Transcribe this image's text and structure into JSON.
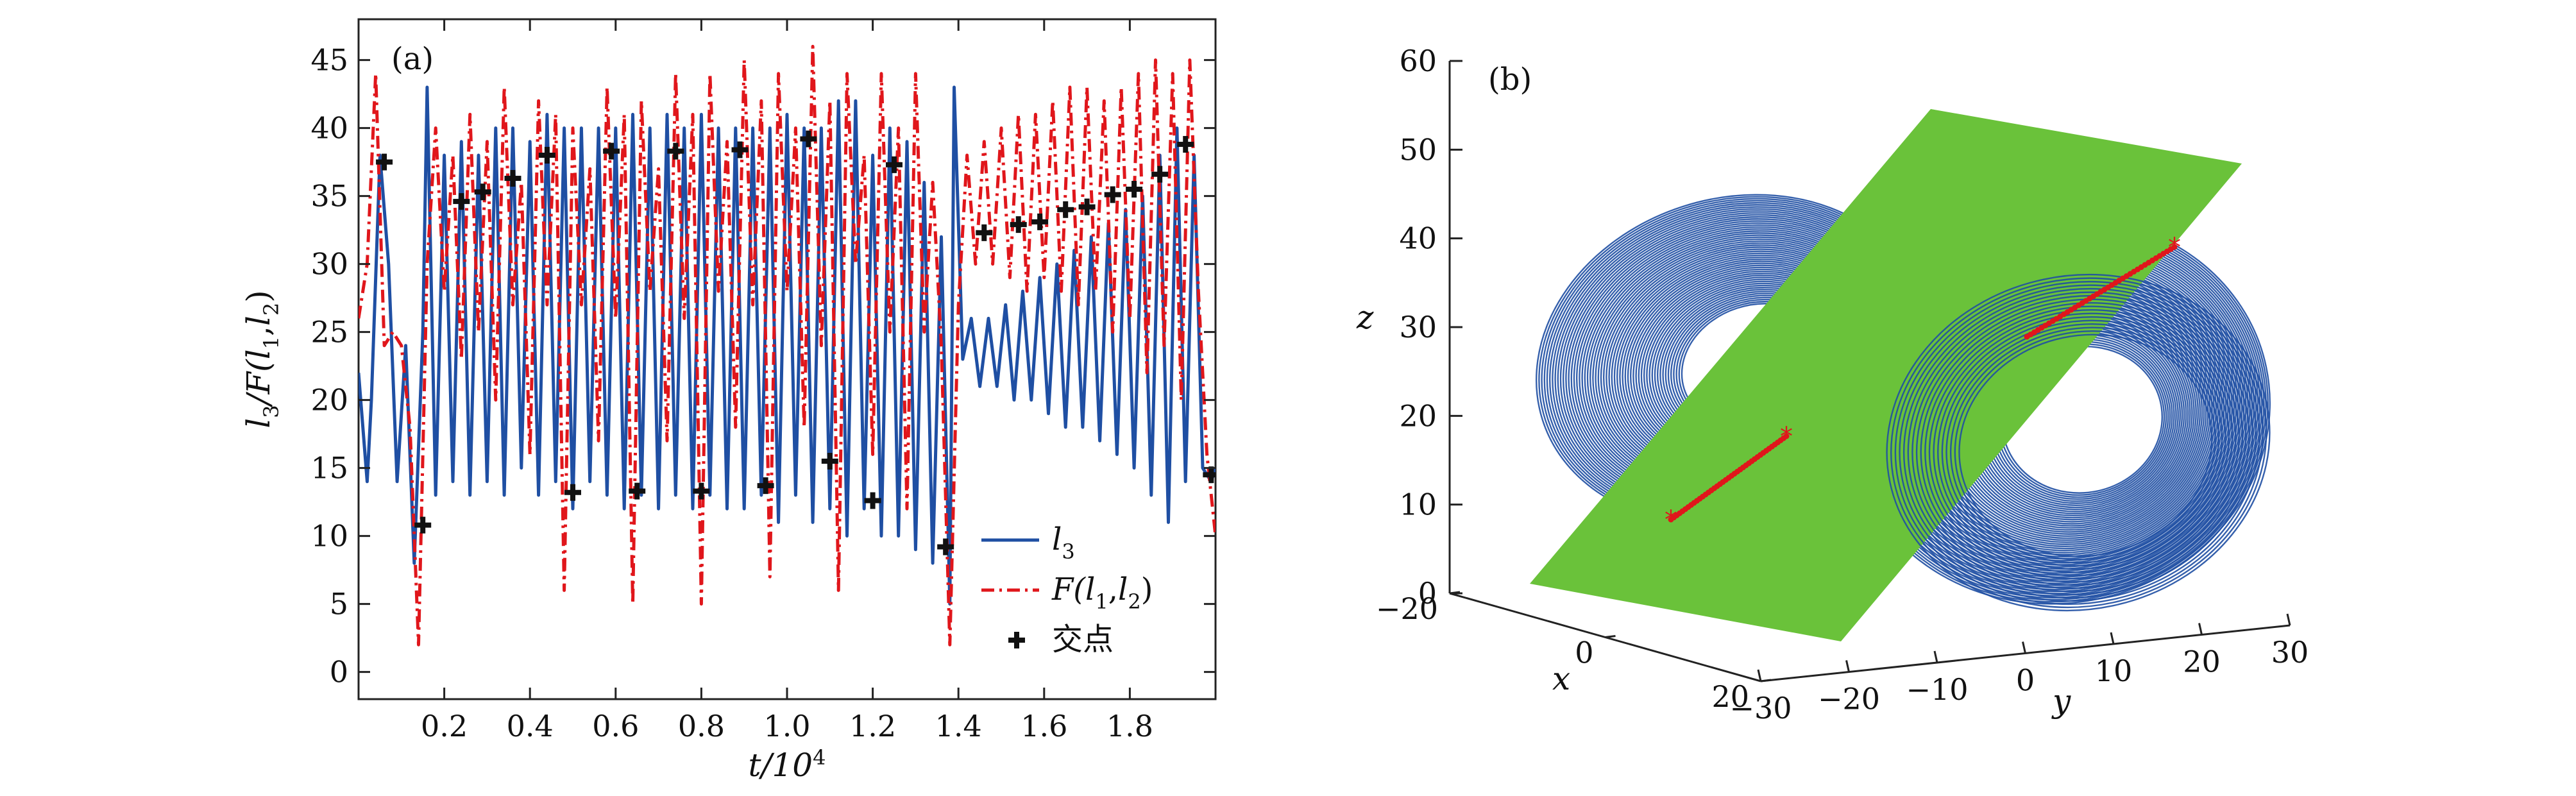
{
  "chart_data": [
    {
      "panel": "(a)",
      "type": "line",
      "xlabel": "t/10^4",
      "ylabel": "l_3/F(l_1,l_2)",
      "xlim": [
        0,
        2.0
      ],
      "ylim": [
        -2,
        48
      ],
      "x_ticks": [
        "0.2",
        "0.4",
        "0.6",
        "0.8",
        "1.0",
        "1.2",
        "1.4",
        "1.6",
        "1.8"
      ],
      "y_ticks": [
        "0",
        "5",
        "10",
        "15",
        "20",
        "25",
        "30",
        "35",
        "40",
        "45"
      ],
      "legend_position": "bottom-right",
      "series": [
        {
          "name": "l_3",
          "color": "#1f4fa3",
          "style": "solid",
          "x": [
            0.0,
            0.02,
            0.03,
            0.05,
            0.07,
            0.09,
            0.11,
            0.13,
            0.15,
            0.16,
            0.18,
            0.2,
            0.22,
            0.24,
            0.26,
            0.28,
            0.3,
            0.32,
            0.34,
            0.36,
            0.38,
            0.4,
            0.42,
            0.44,
            0.46,
            0.48,
            0.5,
            0.52,
            0.54,
            0.56,
            0.58,
            0.6,
            0.62,
            0.64,
            0.66,
            0.68,
            0.7,
            0.72,
            0.74,
            0.76,
            0.78,
            0.8,
            0.82,
            0.84,
            0.86,
            0.88,
            0.9,
            0.92,
            0.94,
            0.96,
            0.98,
            1.0,
            1.02,
            1.04,
            1.06,
            1.08,
            1.1,
            1.12,
            1.14,
            1.16,
            1.18,
            1.2,
            1.22,
            1.24,
            1.26,
            1.28,
            1.3,
            1.32,
            1.34,
            1.36,
            1.38,
            1.39,
            1.41,
            1.43,
            1.45,
            1.47,
            1.49,
            1.51,
            1.53,
            1.55,
            1.57,
            1.59,
            1.61,
            1.63,
            1.65,
            1.67,
            1.69,
            1.71,
            1.73,
            1.75,
            1.77,
            1.79,
            1.81,
            1.83,
            1.85,
            1.87,
            1.89,
            1.91,
            1.93,
            1.95,
            1.97,
            1.99,
            2.0
          ],
          "y": [
            22,
            14,
            20,
            38,
            30,
            14,
            24,
            8,
            25,
            43,
            13,
            38,
            14,
            39,
            13,
            38,
            14,
            40,
            13,
            40,
            15,
            39,
            13,
            41,
            14,
            40,
            12,
            40,
            14,
            40,
            13,
            40,
            12,
            41,
            13,
            40,
            12,
            41,
            13,
            40,
            12,
            41,
            13,
            40,
            12,
            40,
            12,
            40,
            13,
            40,
            11,
            41,
            13,
            40,
            11,
            40,
            12,
            42,
            10,
            42,
            12,
            38,
            10,
            40,
            10,
            39,
            9,
            36,
            8,
            32,
            5,
            43,
            23,
            26,
            21,
            26,
            21,
            27,
            20,
            28,
            20,
            29,
            19,
            30,
            18,
            31,
            18,
            32,
            17,
            33,
            16,
            34,
            15,
            35,
            13,
            38,
            11,
            40,
            14,
            38,
            15,
            14,
            15
          ]
        },
        {
          "name": "F(l_1,l_2)",
          "color": "#e0161b",
          "style": "dashdot",
          "x": [
            0.0,
            0.02,
            0.04,
            0.06,
            0.08,
            0.1,
            0.12,
            0.14,
            0.16,
            0.18,
            0.2,
            0.22,
            0.24,
            0.26,
            0.28,
            0.3,
            0.32,
            0.34,
            0.36,
            0.38,
            0.4,
            0.42,
            0.44,
            0.46,
            0.48,
            0.5,
            0.52,
            0.54,
            0.56,
            0.58,
            0.6,
            0.62,
            0.64,
            0.66,
            0.68,
            0.7,
            0.72,
            0.74,
            0.76,
            0.78,
            0.8,
            0.82,
            0.84,
            0.86,
            0.88,
            0.9,
            0.92,
            0.94,
            0.96,
            0.98,
            1.0,
            1.02,
            1.04,
            1.06,
            1.08,
            1.1,
            1.12,
            1.14,
            1.16,
            1.18,
            1.2,
            1.22,
            1.24,
            1.26,
            1.28,
            1.3,
            1.32,
            1.34,
            1.36,
            1.38,
            1.4,
            1.42,
            1.44,
            1.46,
            1.48,
            1.5,
            1.52,
            1.54,
            1.56,
            1.58,
            1.6,
            1.62,
            1.64,
            1.66,
            1.68,
            1.7,
            1.72,
            1.74,
            1.76,
            1.78,
            1.8,
            1.82,
            1.84,
            1.86,
            1.88,
            1.9,
            1.92,
            1.94,
            1.96,
            1.98,
            2.0
          ],
          "y": [
            26,
            30,
            44,
            24,
            25,
            24,
            18,
            2,
            30,
            40,
            28,
            38,
            23,
            41,
            25,
            39,
            20,
            43,
            27,
            36,
            16,
            42,
            27,
            41,
            6,
            40,
            27,
            37,
            17,
            43,
            26,
            41,
            5,
            42,
            28,
            37,
            17,
            44,
            26,
            41,
            5,
            44,
            28,
            39,
            18,
            45,
            27,
            42,
            7,
            44,
            28,
            40,
            18,
            46,
            24,
            42,
            6,
            44,
            30,
            38,
            16,
            44,
            25,
            40,
            12,
            44,
            25,
            36,
            24,
            2,
            27,
            38,
            30,
            39,
            30,
            40,
            29,
            41,
            28,
            41,
            29,
            42,
            28,
            43,
            27,
            43,
            28,
            42,
            25,
            43,
            26,
            44,
            22,
            45,
            24,
            44,
            20,
            45,
            28,
            16,
            10
          ]
        },
        {
          "name": "交点",
          "color": "#111111",
          "style": "marker-cross",
          "x": [
            0.06,
            0.15,
            0.24,
            0.29,
            0.36,
            0.44,
            0.5,
            0.59,
            0.65,
            0.74,
            0.8,
            0.89,
            0.95,
            1.05,
            1.1,
            1.2,
            1.25,
            1.37,
            1.46,
            1.54,
            1.59,
            1.65,
            1.7,
            1.76,
            1.81,
            1.87,
            1.93,
            1.99
          ],
          "y": [
            37.5,
            10.8,
            34.6,
            35.3,
            36.3,
            38,
            13.2,
            38.3,
            13.3,
            38.3,
            13.3,
            38.4,
            13.7,
            39.2,
            15.5,
            12.6,
            37.3,
            9.2,
            32.3,
            32.9,
            33.1,
            34,
            34.2,
            35.1,
            35.5,
            36.6,
            38.8,
            14.5
          ]
        }
      ]
    },
    {
      "panel": "(b)",
      "type": "scatter",
      "xlabel": "x",
      "ylabel": "y",
      "zlabel": "z",
      "xlim": [
        -20,
        20
      ],
      "ylim": [
        -30,
        30
      ],
      "zlim": [
        0,
        60
      ],
      "x_ticks": [
        "−20",
        "0",
        "20"
      ],
      "y_ticks": [
        "−30",
        "−20",
        "−10",
        "0",
        "10",
        "20",
        "30"
      ],
      "z_ticks": [
        "0",
        "10",
        "20",
        "30",
        "40",
        "50",
        "60"
      ],
      "trajectory_color": "#1f4fa3",
      "plane_color": "#6ac23a",
      "intersection_color": "#e0161b",
      "intersection_points": {
        "x": [
          -12,
          -10,
          -8,
          -6,
          -4,
          4,
          6,
          8,
          10,
          12
        ],
        "y": [
          -14,
          -12,
          -10,
          -8,
          -6,
          6,
          8,
          10,
          12,
          14
        ],
        "z": [
          20,
          21,
          22,
          23,
          24,
          34,
          36,
          38,
          40,
          42
        ]
      }
    }
  ]
}
